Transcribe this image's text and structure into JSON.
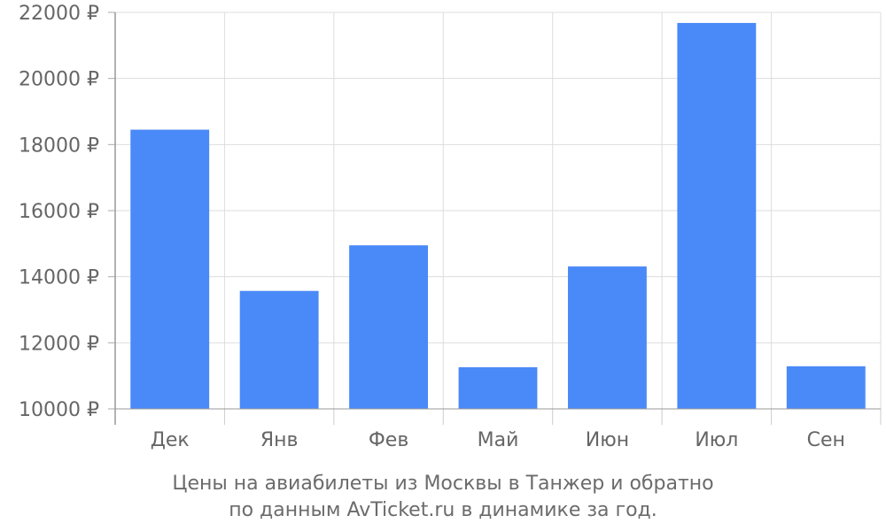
{
  "chart_data": {
    "type": "bar",
    "categories": [
      "Дек",
      "Янв",
      "Фев",
      "Май",
      "Июн",
      "Июл",
      "Сен"
    ],
    "values": [
      18450,
      13570,
      14950,
      11260,
      14310,
      21680,
      11290
    ],
    "y_ticks": [
      "10000 ₽",
      "12000 ₽",
      "14000 ₽",
      "16000 ₽",
      "18000 ₽",
      "20000 ₽",
      "22000 ₽"
    ],
    "ylim": [
      10000,
      22000
    ],
    "y_unit": "₽",
    "grid": true,
    "bar_color": "#4a89f8",
    "caption_line1": "Цены на авиабилеты из Москвы в Танжер и обратно",
    "caption_line2": "по данным AvTicket.ru в динамике за год."
  }
}
